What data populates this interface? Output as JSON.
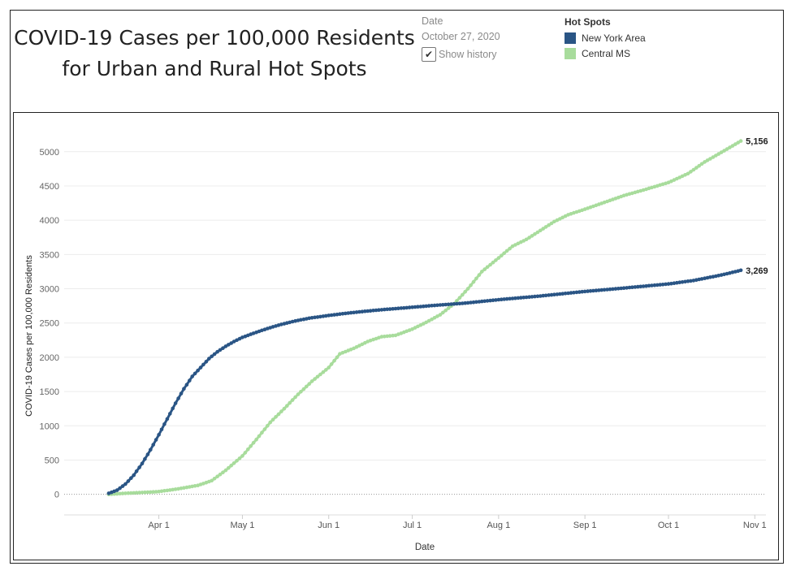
{
  "title_line1": "COVID-19 Cases per 100,000 Residents",
  "title_line2": "for Urban and Rural Hot Spots",
  "filter": {
    "label": "Date",
    "value": "October 27, 2020",
    "checkbox_mark": "✔",
    "checkbox_label": "Show history",
    "checked": true
  },
  "legend": {
    "title": "Hot Spots",
    "items": [
      {
        "name": "New York Area",
        "color": "#2a5585"
      },
      {
        "name": "Central MS",
        "color": "#a8dc9c"
      }
    ]
  },
  "chart_data": {
    "type": "line",
    "xlabel": "Date",
    "ylabel": "COVID-19 Cases per 100,000 Residents",
    "ylim": [
      -300,
      5400
    ],
    "yticks": [
      0,
      500,
      1000,
      1500,
      2000,
      2500,
      3000,
      3500,
      4000,
      4500,
      5000
    ],
    "xticks": [
      {
        "date": "2020-04-01",
        "label": "Apr 1"
      },
      {
        "date": "2020-05-01",
        "label": "May 1"
      },
      {
        "date": "2020-06-01",
        "label": "Jun 1"
      },
      {
        "date": "2020-07-01",
        "label": "Jul 1"
      },
      {
        "date": "2020-08-01",
        "label": "Aug 1"
      },
      {
        "date": "2020-09-01",
        "label": "Sep 1"
      },
      {
        "date": "2020-10-01",
        "label": "Oct 1"
      },
      {
        "date": "2020-11-01",
        "label": "Nov 1"
      }
    ],
    "xlim": [
      "2020-02-27",
      "2020-11-05"
    ],
    "grid": true,
    "zero_line": true,
    "series": [
      {
        "name": "New York Area",
        "color": "#2a5585",
        "end_label": "3,269",
        "points": [
          [
            "2020-03-14",
            15
          ],
          [
            "2020-03-17",
            60
          ],
          [
            "2020-03-20",
            150
          ],
          [
            "2020-03-23",
            280
          ],
          [
            "2020-03-26",
            450
          ],
          [
            "2020-03-29",
            650
          ],
          [
            "2020-04-01",
            870
          ],
          [
            "2020-04-04",
            1100
          ],
          [
            "2020-04-07",
            1330
          ],
          [
            "2020-04-10",
            1540
          ],
          [
            "2020-04-13",
            1720
          ],
          [
            "2020-04-16",
            1850
          ],
          [
            "2020-04-19",
            1980
          ],
          [
            "2020-04-22",
            2080
          ],
          [
            "2020-04-25",
            2160
          ],
          [
            "2020-04-28",
            2230
          ],
          [
            "2020-05-01",
            2290
          ],
          [
            "2020-05-05",
            2350
          ],
          [
            "2020-05-10",
            2420
          ],
          [
            "2020-05-15",
            2480
          ],
          [
            "2020-05-20",
            2530
          ],
          [
            "2020-05-25",
            2570
          ],
          [
            "2020-06-01",
            2610
          ],
          [
            "2020-06-08",
            2645
          ],
          [
            "2020-06-15",
            2675
          ],
          [
            "2020-06-22",
            2700
          ],
          [
            "2020-07-01",
            2730
          ],
          [
            "2020-07-10",
            2760
          ],
          [
            "2020-07-20",
            2790
          ],
          [
            "2020-08-01",
            2840
          ],
          [
            "2020-08-15",
            2890
          ],
          [
            "2020-09-01",
            2960
          ],
          [
            "2020-09-15",
            3010
          ],
          [
            "2020-10-01",
            3070
          ],
          [
            "2020-10-10",
            3120
          ],
          [
            "2020-10-20",
            3200
          ],
          [
            "2020-10-27",
            3269
          ]
        ]
      },
      {
        "name": "Central MS",
        "color": "#a8dc9c",
        "end_label": "5,156",
        "points": [
          [
            "2020-03-14",
            0
          ],
          [
            "2020-03-20",
            15
          ],
          [
            "2020-03-25",
            25
          ],
          [
            "2020-04-01",
            40
          ],
          [
            "2020-04-08",
            80
          ],
          [
            "2020-04-15",
            130
          ],
          [
            "2020-04-20",
            200
          ],
          [
            "2020-04-25",
            350
          ],
          [
            "2020-05-01",
            560
          ],
          [
            "2020-05-06",
            800
          ],
          [
            "2020-05-11",
            1050
          ],
          [
            "2020-05-16",
            1250
          ],
          [
            "2020-05-21",
            1460
          ],
          [
            "2020-05-26",
            1650
          ],
          [
            "2020-06-01",
            1850
          ],
          [
            "2020-06-05",
            2050
          ],
          [
            "2020-06-10",
            2130
          ],
          [
            "2020-06-15",
            2230
          ],
          [
            "2020-06-20",
            2300
          ],
          [
            "2020-06-25",
            2320
          ],
          [
            "2020-07-01",
            2410
          ],
          [
            "2020-07-06",
            2510
          ],
          [
            "2020-07-11",
            2620
          ],
          [
            "2020-07-16",
            2780
          ],
          [
            "2020-07-21",
            3000
          ],
          [
            "2020-07-26",
            3250
          ],
          [
            "2020-08-01",
            3450
          ],
          [
            "2020-08-06",
            3620
          ],
          [
            "2020-08-11",
            3720
          ],
          [
            "2020-08-16",
            3850
          ],
          [
            "2020-08-21",
            3980
          ],
          [
            "2020-08-26",
            4080
          ],
          [
            "2020-09-01",
            4160
          ],
          [
            "2020-09-08",
            4260
          ],
          [
            "2020-09-15",
            4360
          ],
          [
            "2020-09-22",
            4440
          ],
          [
            "2020-10-01",
            4550
          ],
          [
            "2020-10-08",
            4680
          ],
          [
            "2020-10-14",
            4850
          ],
          [
            "2020-10-20",
            4990
          ],
          [
            "2020-10-27",
            5156
          ]
        ]
      }
    ]
  }
}
